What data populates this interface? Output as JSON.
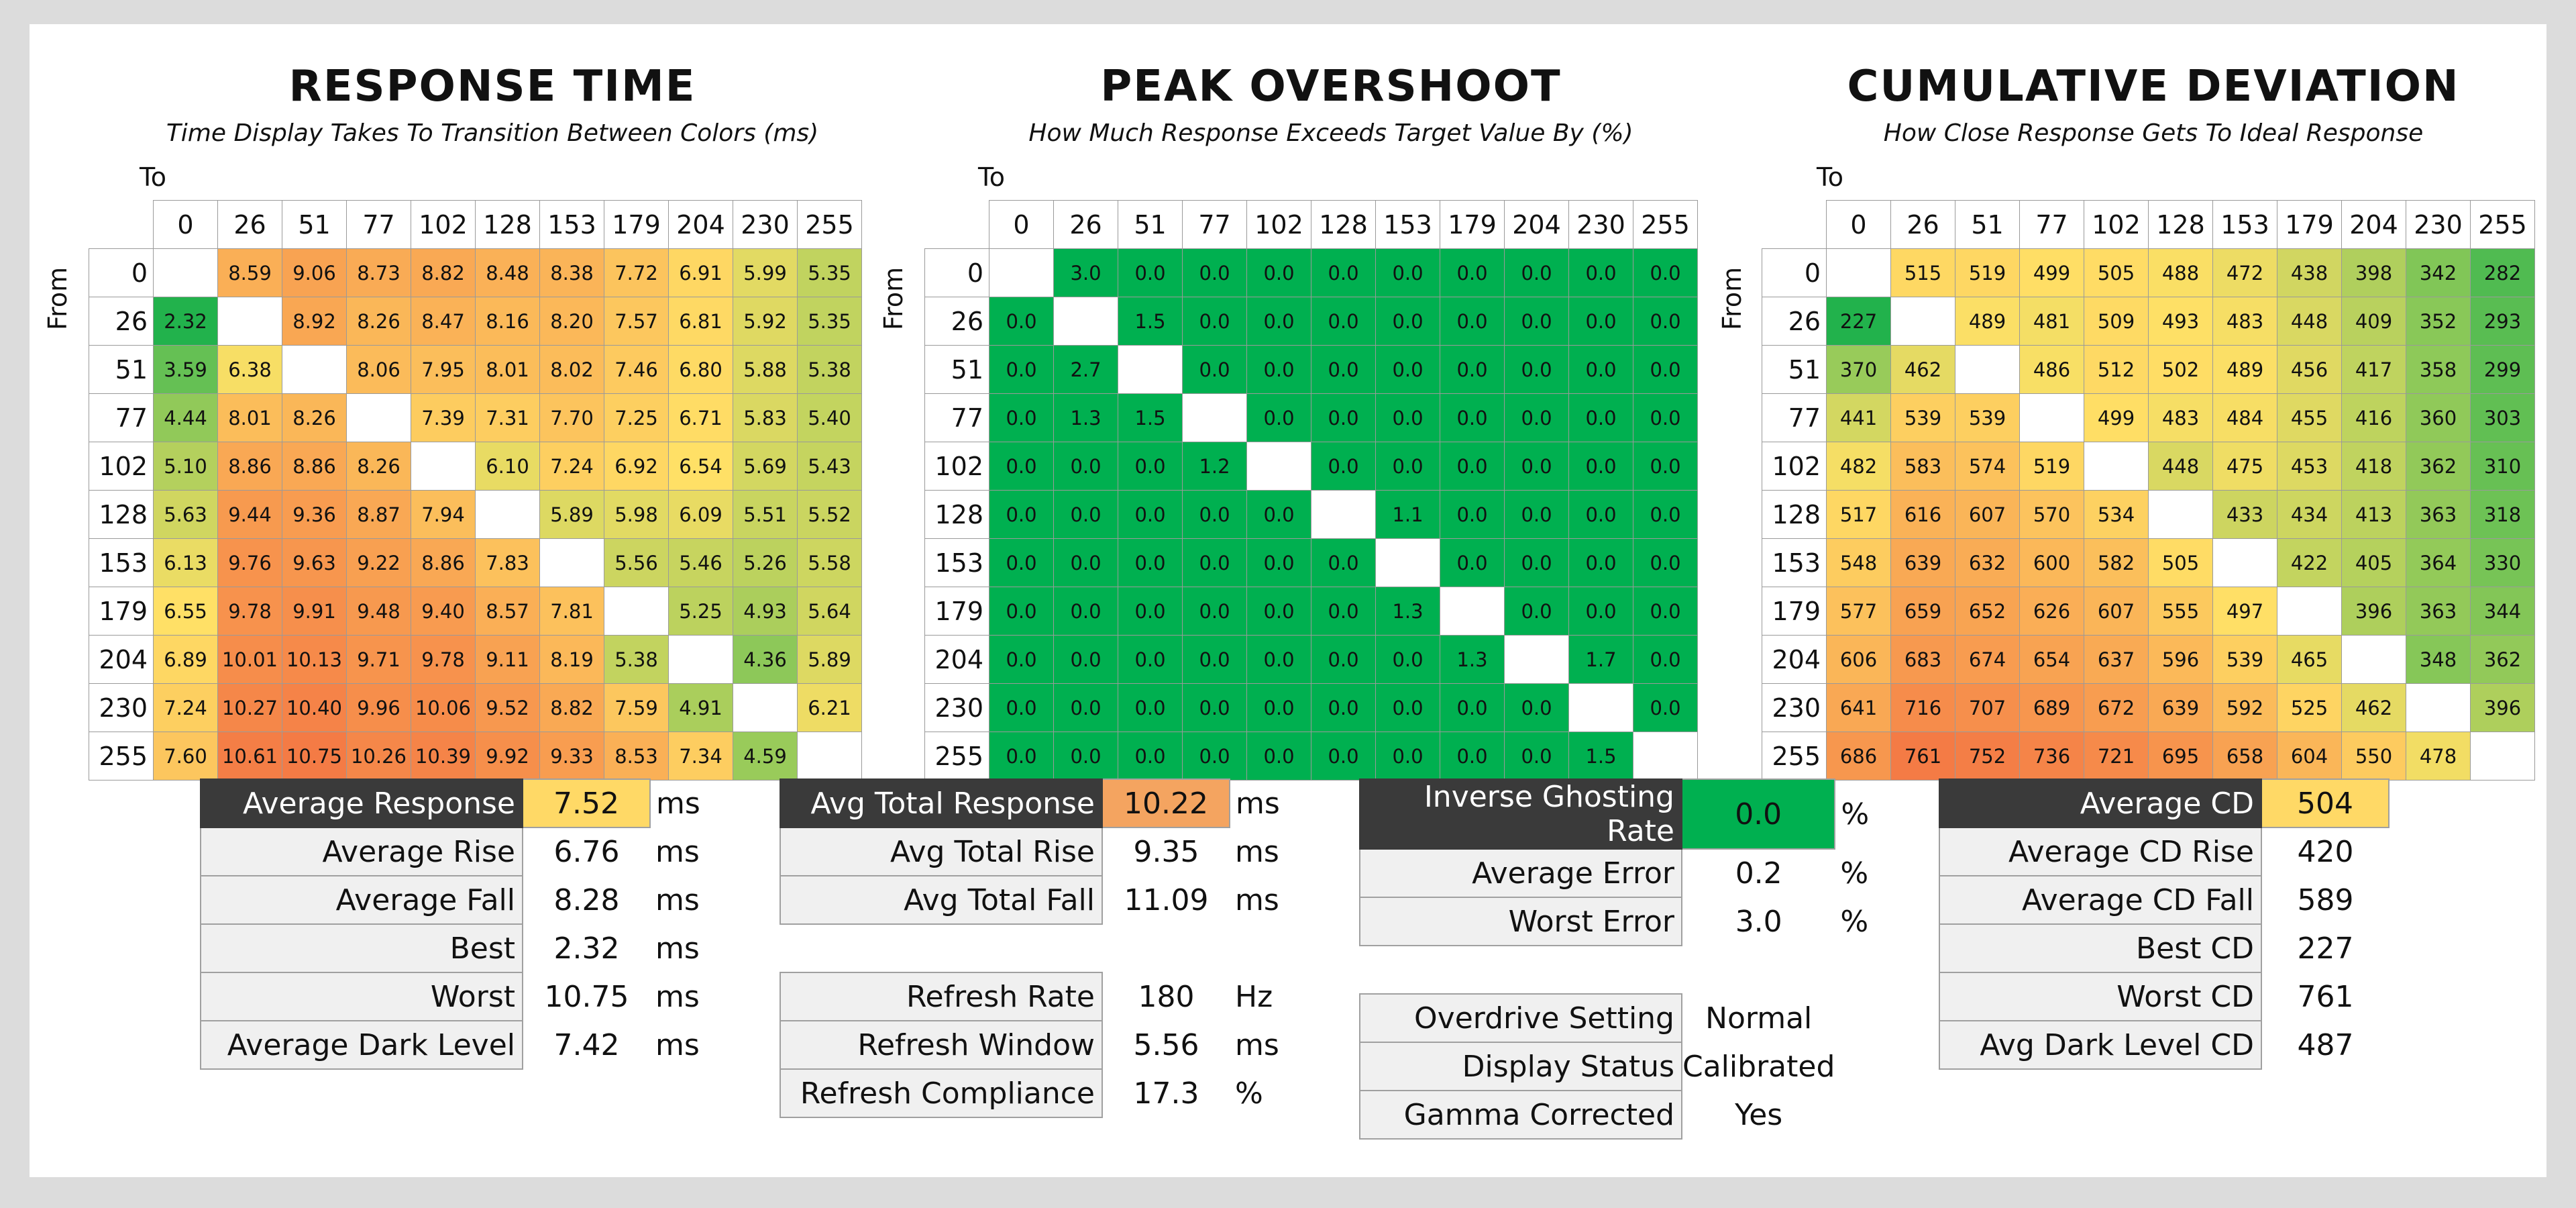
{
  "chart_data": [
    {
      "type": "heatmap",
      "title": "RESPONSE TIME",
      "subtitle": "Time Display Takes To Transition Between Colors (ms)",
      "xlabel": "To",
      "ylabel": "From",
      "categories": [
        "0",
        "26",
        "51",
        "77",
        "102",
        "128",
        "153",
        "179",
        "204",
        "230",
        "255"
      ],
      "values": [
        [
          null,
          "8.59",
          "9.06",
          "8.73",
          "8.82",
          "8.48",
          "8.38",
          "7.72",
          "6.91",
          "5.99",
          "5.35"
        ],
        [
          "2.32",
          null,
          "8.92",
          "8.26",
          "8.47",
          "8.16",
          "8.20",
          "7.57",
          "6.81",
          "5.92",
          "5.35"
        ],
        [
          "3.59",
          "6.38",
          null,
          "8.06",
          "7.95",
          "8.01",
          "8.02",
          "7.46",
          "6.80",
          "5.88",
          "5.38"
        ],
        [
          "4.44",
          "8.01",
          "8.26",
          null,
          "7.39",
          "7.31",
          "7.70",
          "7.25",
          "6.71",
          "5.83",
          "5.40"
        ],
        [
          "5.10",
          "8.86",
          "8.86",
          "8.26",
          null,
          "6.10",
          "7.24",
          "6.92",
          "6.54",
          "5.69",
          "5.43"
        ],
        [
          "5.63",
          "9.44",
          "9.36",
          "8.87",
          "7.94",
          null,
          "5.89",
          "5.98",
          "6.09",
          "5.51",
          "5.52"
        ],
        [
          "6.13",
          "9.76",
          "9.63",
          "9.22",
          "8.86",
          "7.83",
          null,
          "5.56",
          "5.46",
          "5.26",
          "5.58"
        ],
        [
          "6.55",
          "9.78",
          "9.91",
          "9.48",
          "9.40",
          "8.57",
          "7.81",
          null,
          "5.25",
          "4.93",
          "5.64"
        ],
        [
          "6.89",
          "10.01",
          "10.13",
          "9.71",
          "9.78",
          "9.11",
          "8.19",
          "5.38",
          null,
          "4.36",
          "5.89"
        ],
        [
          "7.24",
          "10.27",
          "10.40",
          "9.96",
          "10.06",
          "9.52",
          "8.82",
          "7.59",
          "4.91",
          null,
          "6.21"
        ],
        [
          "7.60",
          "10.61",
          "10.75",
          "10.26",
          "10.39",
          "9.92",
          "9.33",
          "8.53",
          "7.34",
          "4.59",
          null
        ]
      ],
      "color_range": [
        2.32,
        10.75
      ],
      "colors": {
        "low": "#22b24c",
        "mid": "#ffe066",
        "high": "#f47b45"
      }
    },
    {
      "type": "heatmap",
      "title": "PEAK OVERSHOOT",
      "subtitle": "How Much Response Exceeds Target Value By (%)",
      "xlabel": "To",
      "ylabel": "From",
      "categories": [
        "0",
        "26",
        "51",
        "77",
        "102",
        "128",
        "153",
        "179",
        "204",
        "230",
        "255"
      ],
      "values": [
        [
          null,
          "3.0",
          "0.0",
          "0.0",
          "0.0",
          "0.0",
          "0.0",
          "0.0",
          "0.0",
          "0.0",
          "0.0"
        ],
        [
          "0.0",
          null,
          "1.5",
          "0.0",
          "0.0",
          "0.0",
          "0.0",
          "0.0",
          "0.0",
          "0.0",
          "0.0"
        ],
        [
          "0.0",
          "2.7",
          null,
          "0.0",
          "0.0",
          "0.0",
          "0.0",
          "0.0",
          "0.0",
          "0.0",
          "0.0"
        ],
        [
          "0.0",
          "1.3",
          "1.5",
          null,
          "0.0",
          "0.0",
          "0.0",
          "0.0",
          "0.0",
          "0.0",
          "0.0"
        ],
        [
          "0.0",
          "0.0",
          "0.0",
          "1.2",
          null,
          "0.0",
          "0.0",
          "0.0",
          "0.0",
          "0.0",
          "0.0"
        ],
        [
          "0.0",
          "0.0",
          "0.0",
          "0.0",
          "0.0",
          null,
          "1.1",
          "0.0",
          "0.0",
          "0.0",
          "0.0"
        ],
        [
          "0.0",
          "0.0",
          "0.0",
          "0.0",
          "0.0",
          "0.0",
          null,
          "0.0",
          "0.0",
          "0.0",
          "0.0"
        ],
        [
          "0.0",
          "0.0",
          "0.0",
          "0.0",
          "0.0",
          "0.0",
          "1.3",
          null,
          "0.0",
          "0.0",
          "0.0"
        ],
        [
          "0.0",
          "0.0",
          "0.0",
          "0.0",
          "0.0",
          "0.0",
          "0.0",
          "1.3",
          null,
          "1.7",
          "0.0"
        ],
        [
          "0.0",
          "0.0",
          "0.0",
          "0.0",
          "0.0",
          "0.0",
          "0.0",
          "0.0",
          "0.0",
          null,
          "0.0"
        ],
        [
          "0.0",
          "0.0",
          "0.0",
          "0.0",
          "0.0",
          "0.0",
          "0.0",
          "0.0",
          "0.0",
          "1.5",
          null
        ]
      ],
      "color_range": [
        0,
        100
      ],
      "colors": {
        "low": "#00b050",
        "mid": "#00b050",
        "high": "#00b050"
      }
    },
    {
      "type": "heatmap",
      "title": "CUMULATIVE DEVIATION",
      "subtitle": "How Close Response Gets To Ideal Response",
      "xlabel": "To",
      "ylabel": "From",
      "categories": [
        "0",
        "26",
        "51",
        "77",
        "102",
        "128",
        "153",
        "179",
        "204",
        "230",
        "255"
      ],
      "values": [
        [
          null,
          "515",
          "519",
          "499",
          "505",
          "488",
          "472",
          "438",
          "398",
          "342",
          "282"
        ],
        [
          "227",
          null,
          "489",
          "481",
          "509",
          "493",
          "483",
          "448",
          "409",
          "352",
          "293"
        ],
        [
          "370",
          "462",
          null,
          "486",
          "512",
          "502",
          "489",
          "456",
          "417",
          "358",
          "299"
        ],
        [
          "441",
          "539",
          "539",
          null,
          "499",
          "483",
          "484",
          "455",
          "416",
          "360",
          "303"
        ],
        [
          "482",
          "583",
          "574",
          "519",
          null,
          "448",
          "475",
          "453",
          "418",
          "362",
          "310"
        ],
        [
          "517",
          "616",
          "607",
          "570",
          "534",
          null,
          "433",
          "434",
          "413",
          "363",
          "318"
        ],
        [
          "548",
          "639",
          "632",
          "600",
          "582",
          "505",
          null,
          "422",
          "405",
          "364",
          "330"
        ],
        [
          "577",
          "659",
          "652",
          "626",
          "607",
          "555",
          "497",
          null,
          "396",
          "363",
          "344"
        ],
        [
          "606",
          "683",
          "674",
          "654",
          "637",
          "596",
          "539",
          "465",
          null,
          "348",
          "362"
        ],
        [
          "641",
          "716",
          "707",
          "689",
          "672",
          "639",
          "592",
          "525",
          "462",
          null,
          "396"
        ],
        [
          "686",
          "761",
          "752",
          "736",
          "721",
          "695",
          "658",
          "604",
          "550",
          "478",
          null
        ]
      ],
      "color_range": [
        227,
        761
      ],
      "colors": {
        "low": "#22b24c",
        "mid": "#ffe066",
        "high": "#f47b45"
      }
    }
  ],
  "stats": [
    {
      "rows": [
        {
          "label": "Average Response",
          "value": "7.52",
          "unit": "ms",
          "dark": true,
          "highlight": "#ffd966"
        },
        {
          "label": "Average Rise",
          "value": "6.76",
          "unit": "ms"
        },
        {
          "label": "Average Fall",
          "value": "8.28",
          "unit": "ms"
        },
        {
          "label": "Best",
          "value": "2.32",
          "unit": "ms"
        },
        {
          "label": "Worst",
          "value": "10.75",
          "unit": "ms"
        },
        {
          "label": "Average Dark Level",
          "value": "7.42",
          "unit": "ms"
        }
      ]
    },
    {
      "rows": [
        {
          "label": "Avg Total Response",
          "value": "10.22",
          "unit": "ms",
          "dark": true,
          "highlight": "#f4a460"
        },
        {
          "label": "Avg Total Rise",
          "value": "9.35",
          "unit": "ms"
        },
        {
          "label": "Avg Total Fall",
          "value": "11.09",
          "unit": "ms"
        },
        {
          "gap": true
        },
        {
          "label": "Refresh Rate",
          "value": "180",
          "unit": "Hz"
        },
        {
          "label": "Refresh Window",
          "value": "5.56",
          "unit": "ms"
        },
        {
          "label": "Refresh Compliance",
          "value": "17.3",
          "unit": "%"
        }
      ]
    },
    {
      "rows": [
        {
          "label": "Inverse Ghosting Rate",
          "value": "0.0",
          "unit": "%",
          "dark": true,
          "highlight": "#00b050"
        },
        {
          "label": "Average Error",
          "value": "0.2",
          "unit": "%"
        },
        {
          "label": "Worst Error",
          "value": "3.0",
          "unit": "%"
        },
        {
          "gap": true
        },
        {
          "label": "Overdrive Setting",
          "value": "Normal",
          "unit": ""
        },
        {
          "label": "Display Status",
          "value": "Calibrated",
          "unit": ""
        },
        {
          "label": "Gamma Corrected",
          "value": "Yes",
          "unit": ""
        }
      ]
    },
    {
      "rows": [
        {
          "label": "Average CD",
          "value": "504",
          "unit": "",
          "dark": true,
          "highlight": "#ffd966"
        },
        {
          "label": "Average CD Rise",
          "value": "420",
          "unit": ""
        },
        {
          "label": "Average CD Fall",
          "value": "589",
          "unit": ""
        },
        {
          "label": "Best CD",
          "value": "227",
          "unit": ""
        },
        {
          "label": "Worst CD",
          "value": "761",
          "unit": ""
        },
        {
          "label": "Avg Dark Level CD",
          "value": "487",
          "unit": ""
        }
      ]
    }
  ]
}
